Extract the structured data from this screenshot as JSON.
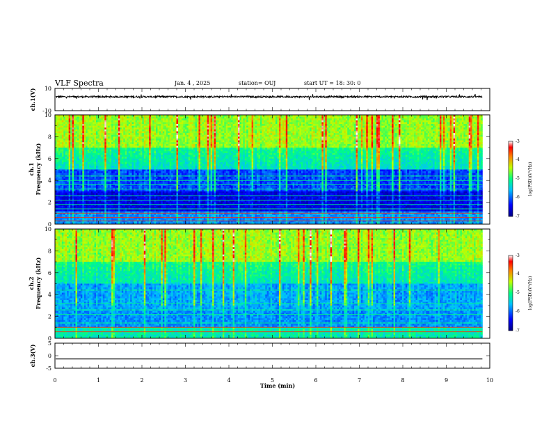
{
  "header": {
    "title": "VLF Spectra",
    "date": "Jan. 4 , 2025",
    "station": "station= OUJ",
    "start": "start UT =  18: 30: 0"
  },
  "chart_data": [
    {
      "type": "line",
      "panel": "ch1-waveform",
      "ylabel": "ch.1(V)",
      "xlim": [
        0,
        10
      ],
      "ylim": [
        -10,
        10
      ],
      "yticks": [
        "10",
        "-10"
      ],
      "x_end": 9.83,
      "baseline": 2.5,
      "amplitude": 1.5
    },
    {
      "type": "heatmap",
      "panel": "ch1-spectrogram",
      "ylabel_top": "ch.1",
      "ylabel": "Frequency (kHz)",
      "xlim": [
        0,
        10
      ],
      "ylim": [
        0,
        10
      ],
      "yticks": [
        "0",
        "2",
        "4",
        "6",
        "8",
        "10"
      ],
      "x_end": 9.83,
      "colorbar": {
        "label": "log(PSD)(V²/Hz)",
        "range": [
          -7,
          -3
        ],
        "ticks": [
          "-3",
          "-4",
          "-5",
          "-6",
          "-7"
        ]
      },
      "tonal_lines_khz": [
        0.3,
        0.6,
        1.0,
        1.4,
        1.8,
        2.2,
        2.6,
        3.2,
        3.6,
        4.0,
        4.4
      ]
    },
    {
      "type": "heatmap",
      "panel": "ch2-spectrogram",
      "ylabel_top": "ch.2",
      "ylabel": "Frequency (kHz)",
      "xlim": [
        0,
        10
      ],
      "ylim": [
        0,
        10
      ],
      "yticks": [
        "0",
        "2",
        "4",
        "6",
        "8",
        "10"
      ],
      "x_end": 9.83,
      "colorbar": {
        "label": "log(PSD)(V²/Hz)",
        "range": [
          -7,
          -3
        ],
        "ticks": [
          "-3",
          "-4",
          "-5",
          "-6",
          "-7"
        ]
      },
      "tonal_lines_khz": [
        0.6,
        1.0,
        1.4,
        2.2,
        2.6,
        3.2,
        4.4
      ]
    },
    {
      "type": "line",
      "panel": "ch3-waveform",
      "ylabel": "ch.3(V)",
      "xlim": [
        0,
        10
      ],
      "ylim": [
        -5,
        5
      ],
      "yticks": [
        "5",
        "0",
        "-5"
      ],
      "x_end": 9.83,
      "baseline": -1.3,
      "amplitude": 0
    }
  ],
  "xaxis": {
    "label": "Time (min)",
    "ticks": [
      "0",
      "1",
      "2",
      "3",
      "4",
      "5",
      "6",
      "7",
      "8",
      "9",
      "10"
    ]
  }
}
